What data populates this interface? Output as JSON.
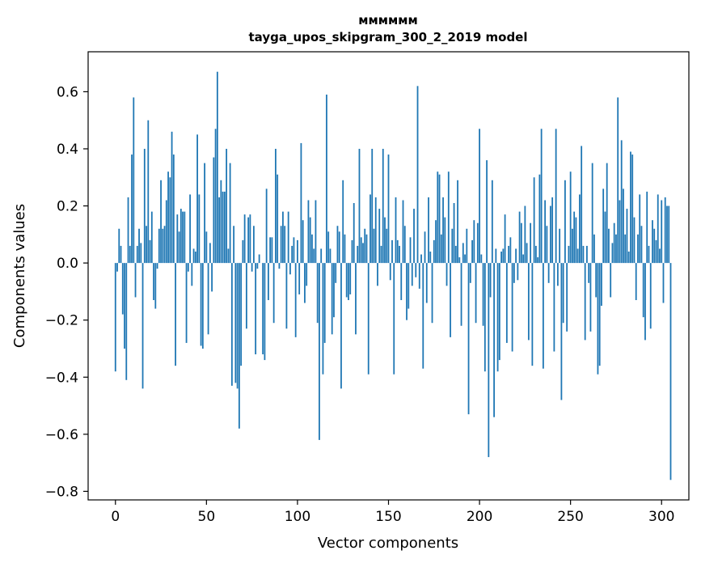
{
  "chart_data": {
    "type": "bar",
    "title_line1": "мммммм",
    "title_line2": "tayga_upos_skipgram_300_2_2019 model",
    "xlabel": "Vector components",
    "ylabel": "Components values",
    "xlim": [
      -15,
      315
    ],
    "ylim": [
      -0.83,
      0.74
    ],
    "x_ticks": [
      0,
      50,
      100,
      150,
      200,
      250,
      300
    ],
    "x_tick_labels": [
      "0",
      "50",
      "100",
      "150",
      "200",
      "250",
      "300"
    ],
    "y_ticks": [
      0.6,
      0.4,
      0.2,
      0.0,
      -0.2,
      -0.4,
      -0.6,
      -0.8
    ],
    "y_tick_labels": [
      "0.6",
      "0.4",
      "0.2",
      "0.0",
      "−0.2",
      "−0.4",
      "−0.6",
      "−0.8"
    ],
    "grid": false,
    "bar_color": "#1f77b4",
    "values": [
      -0.38,
      -0.03,
      0.12,
      0.06,
      -0.18,
      -0.3,
      -0.41,
      0.23,
      0.06,
      0.38,
      0.58,
      -0.12,
      0.06,
      0.12,
      0.07,
      -0.44,
      0.4,
      0.13,
      0.5,
      0.08,
      0.18,
      -0.13,
      -0.16,
      -0.02,
      0.12,
      0.29,
      0.12,
      0.13,
      0.22,
      0.32,
      0.3,
      0.46,
      0.38,
      -0.36,
      0.17,
      0.11,
      0.19,
      0.18,
      0.18,
      -0.28,
      -0.03,
      0.24,
      -0.08,
      0.05,
      0.04,
      0.45,
      0.24,
      -0.29,
      -0.3,
      0.35,
      0.11,
      -0.25,
      0.07,
      -0.1,
      0.37,
      0.47,
      0.67,
      0.23,
      0.29,
      0.25,
      0.25,
      0.4,
      0.05,
      0.35,
      -0.43,
      0.13,
      -0.42,
      -0.44,
      -0.58,
      -0.36,
      0.08,
      0.17,
      -0.23,
      0.16,
      0.17,
      -0.03,
      0.13,
      -0.32,
      -0.02,
      0.03,
      0.0,
      -0.32,
      -0.34,
      0.26,
      -0.13,
      0.09,
      0.09,
      -0.21,
      0.4,
      0.31,
      -0.02,
      0.13,
      0.18,
      0.13,
      -0.23,
      0.18,
      -0.04,
      0.06,
      0.09,
      -0.26,
      0.08,
      -0.11,
      0.42,
      0.15,
      -0.14,
      -0.08,
      0.22,
      0.16,
      0.1,
      0.05,
      0.22,
      -0.21,
      -0.62,
      0.05,
      -0.39,
      -0.28,
      0.59,
      0.11,
      0.05,
      -0.25,
      -0.19,
      -0.07,
      0.13,
      0.11,
      -0.44,
      0.29,
      0.1,
      -0.12,
      -0.13,
      -0.11,
      0.08,
      0.21,
      -0.25,
      0.06,
      0.4,
      0.09,
      0.07,
      0.12,
      0.1,
      -0.39,
      0.24,
      0.4,
      0.12,
      0.23,
      -0.08,
      0.19,
      0.06,
      0.4,
      0.16,
      0.12,
      0.38,
      -0.06,
      0.08,
      -0.39,
      0.23,
      0.08,
      0.06,
      -0.13,
      0.22,
      0.13,
      -0.2,
      -0.16,
      0.09,
      -0.08,
      0.19,
      -0.05,
      0.62,
      -0.09,
      0.03,
      -0.37,
      0.11,
      -0.14,
      0.23,
      0.04,
      -0.21,
      0.08,
      0.15,
      0.32,
      0.31,
      0.1,
      0.23,
      0.16,
      -0.08,
      0.32,
      -0.26,
      0.12,
      0.21,
      0.06,
      0.29,
      0.02,
      -0.22,
      0.07,
      0.03,
      0.12,
      -0.53,
      -0.07,
      0.08,
      0.15,
      -0.21,
      0.14,
      0.47,
      0.03,
      -0.22,
      -0.38,
      0.36,
      -0.68,
      -0.12,
      0.29,
      -0.54,
      0.05,
      -0.38,
      -0.34,
      0.04,
      0.05,
      0.17,
      -0.28,
      0.06,
      0.09,
      -0.31,
      -0.07,
      0.05,
      -0.06,
      0.18,
      0.14,
      0.03,
      0.2,
      0.07,
      -0.27,
      0.14,
      -0.36,
      0.3,
      0.06,
      0.02,
      0.31,
      0.47,
      -0.37,
      0.22,
      0.13,
      -0.07,
      0.2,
      0.23,
      -0.31,
      0.47,
      -0.08,
      0.12,
      -0.48,
      -0.21,
      0.29,
      -0.24,
      0.06,
      0.32,
      0.12,
      0.18,
      0.16,
      0.05,
      0.24,
      0.41,
      0.06,
      -0.27,
      0.06,
      -0.07,
      -0.24,
      0.35,
      0.1,
      -0.12,
      -0.39,
      -0.36,
      -0.15,
      0.26,
      0.18,
      0.35,
      0.12,
      -0.12,
      0.07,
      0.14,
      0.1,
      0.58,
      0.22,
      0.43,
      0.26,
      0.1,
      0.19,
      0.04,
      0.39,
      0.38,
      0.16,
      -0.13,
      0.1,
      0.24,
      0.13,
      -0.19,
      -0.27,
      0.25,
      0.06,
      -0.23,
      0.15,
      0.12,
      0.08,
      0.24,
      0.05,
      0.22,
      -0.14,
      0.23,
      0.2,
      0.2,
      -0.76,
      0.0
    ]
  }
}
